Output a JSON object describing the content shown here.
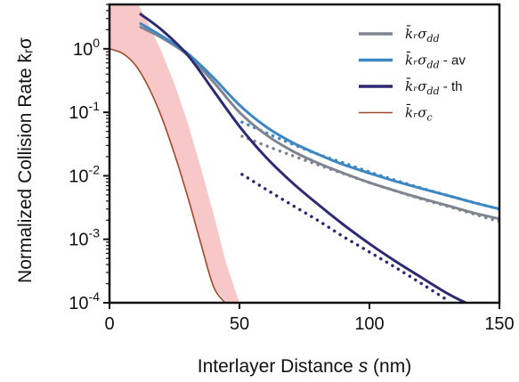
{
  "chart_data": {
    "type": "line",
    "xlabel": "Interlayer Distance s (nm)",
    "ylabel": "Normalized Collision Rate k̄ᵣσ",
    "xlim": [
      0,
      150
    ],
    "ylim": [
      0.0001,
      5
    ],
    "yscale": "log",
    "grid": false,
    "legend_position": "top-right",
    "x_ticks": [
      "0",
      "50",
      "100",
      "150"
    ],
    "y_ticks": [
      {
        "base": "10",
        "exp": "0",
        "value": 1
      },
      {
        "base": "10",
        "exp": "-1",
        "value": 0.1
      },
      {
        "base": "10",
        "exp": "-2",
        "value": 0.01
      },
      {
        "base": "10",
        "exp": "-3",
        "value": 0.001
      },
      {
        "base": "10",
        "exp": "-4",
        "value": 0.0001
      }
    ],
    "legend": [
      {
        "main": "k̄ᵣσ",
        "sub": "dd",
        "suffix": "",
        "color": "#7f8590"
      },
      {
        "main": "k̄ᵣσ",
        "sub": "dd",
        "suffix": " - av",
        "color": "#3d87c3"
      },
      {
        "main": "k̄ᵣσ",
        "sub": "dd",
        "suffix": " - th",
        "color": "#2b2a72"
      },
      {
        "main": "k̄ᵣσ",
        "sub": "c",
        "suffix": "",
        "color": "#9e4a2a"
      }
    ],
    "series": [
      {
        "name": "k̄ᵣσ_dd",
        "color": "#7f8590",
        "style": "solid",
        "x": [
          12,
          20,
          30,
          40,
          50,
          60,
          70,
          80,
          90,
          100,
          110,
          120,
          130,
          140,
          150
        ],
        "y": [
          2.2,
          1.5,
          0.8,
          0.3,
          0.1,
          0.045,
          0.025,
          0.016,
          0.011,
          0.0078,
          0.0058,
          0.0044,
          0.0034,
          0.0026,
          0.0021
        ]
      },
      {
        "name": "k̄ᵣσ_dd - av",
        "color": "#3d87c3",
        "style": "solid",
        "x": [
          12,
          20,
          30,
          40,
          50,
          60,
          70,
          80,
          90,
          100,
          110,
          120,
          130,
          140,
          150
        ],
        "y": [
          2.5,
          1.6,
          0.85,
          0.35,
          0.13,
          0.06,
          0.034,
          0.022,
          0.015,
          0.011,
          0.0082,
          0.0063,
          0.0049,
          0.0038,
          0.003
        ]
      },
      {
        "name": "k̄ᵣσ_dd - th",
        "color": "#2b2a72",
        "style": "solid",
        "x": [
          12,
          20,
          30,
          40,
          50,
          60,
          70,
          80,
          90,
          100,
          110,
          120,
          130,
          137
        ],
        "y": [
          3.5,
          2.0,
          0.8,
          0.22,
          0.06,
          0.02,
          0.008,
          0.0036,
          0.0017,
          0.00085,
          0.00045,
          0.00025,
          0.00014,
          0.0001
        ]
      },
      {
        "name": "k̄ᵣσ_c",
        "color": "#9e4a2a",
        "style": "solid",
        "x": [
          0,
          5,
          10,
          15,
          20,
          25,
          30,
          35,
          40,
          44.5
        ],
        "y": [
          1.0,
          0.85,
          0.55,
          0.25,
          0.085,
          0.022,
          0.0048,
          0.0009,
          0.00018,
          0.0001
        ]
      },
      {
        "name": "",
        "color": "#7f8590",
        "style": "dotted",
        "x": [
          51,
          60,
          70,
          80,
          90,
          100,
          110,
          120,
          130,
          140,
          150
        ],
        "y": [
          0.042,
          0.03,
          0.021,
          0.015,
          0.0108,
          0.0078,
          0.0058,
          0.0043,
          0.0033,
          0.0025,
          0.0019
        ]
      },
      {
        "name": "",
        "color": "#3d87c3",
        "style": "dotted",
        "x": [
          51,
          60,
          70,
          80,
          90,
          100,
          110,
          120,
          130,
          140,
          150
        ],
        "y": [
          0.07,
          0.048,
          0.032,
          0.022,
          0.016,
          0.0115,
          0.0085,
          0.0064,
          0.0049,
          0.0038,
          0.003
        ]
      },
      {
        "name": "",
        "color": "#2b2a72",
        "style": "dotted",
        "x": [
          51,
          60,
          70,
          80,
          90,
          100,
          110,
          120,
          130
        ],
        "y": [
          0.0105,
          0.0062,
          0.0035,
          0.002,
          0.0011,
          0.00063,
          0.00036,
          0.0002,
          0.00011
        ]
      }
    ],
    "band": {
      "color": "#f8c8c8",
      "x": [
        0,
        5,
        10,
        15,
        20,
        25,
        30,
        35,
        40,
        45,
        50
      ],
      "lower": [
        1.0,
        0.85,
        0.55,
        0.25,
        0.085,
        0.022,
        0.0048,
        0.0009,
        0.00018,
        0.0001,
        0.0001
      ],
      "upper": [
        20,
        12,
        6,
        2.5,
        0.9,
        0.28,
        0.07,
        0.014,
        0.0025,
        0.0004,
        0.0001
      ]
    }
  }
}
